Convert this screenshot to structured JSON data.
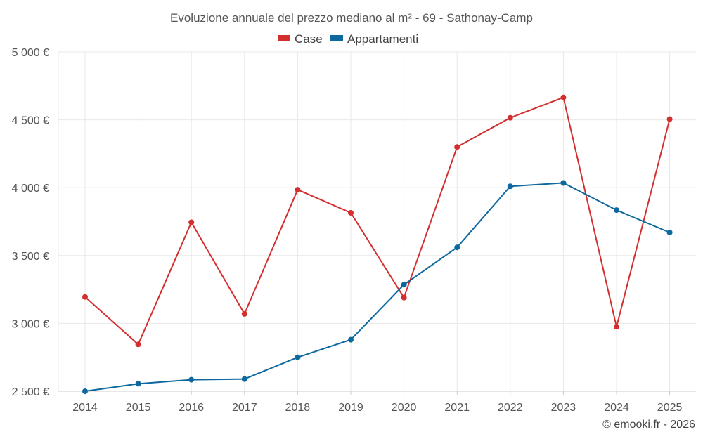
{
  "chart_data": {
    "type": "line",
    "title": "Evoluzione annuale del prezzo mediano al m² - 69 - Sathonay-Camp",
    "categories": [
      "2014",
      "2015",
      "2016",
      "2017",
      "2018",
      "2019",
      "2020",
      "2021",
      "2022",
      "2023",
      "2024",
      "2025"
    ],
    "series": [
      {
        "name": "Case",
        "color": "#d32f2f",
        "values": [
          3195,
          2845,
          3745,
          3070,
          3985,
          3815,
          3190,
          4300,
          4515,
          4665,
          2975,
          4505
        ]
      },
      {
        "name": "Appartamenti",
        "color": "#0d68a0",
        "values": [
          2500,
          2555,
          2585,
          2590,
          2750,
          2880,
          3285,
          3560,
          4010,
          4035,
          3835,
          3670
        ]
      }
    ],
    "ylim": [
      2500,
      5000
    ],
    "yticks": [
      2500,
      3000,
      3500,
      4000,
      4500,
      5000
    ],
    "ytick_labels": [
      "2 500 €",
      "3 000 €",
      "3 500 €",
      "4 000 €",
      "4 500 €",
      "5 000 €"
    ],
    "xlabel": "",
    "ylabel": "",
    "grid": true,
    "legend_position": "top-center",
    "credit": "© emooki.fr - 2026"
  }
}
